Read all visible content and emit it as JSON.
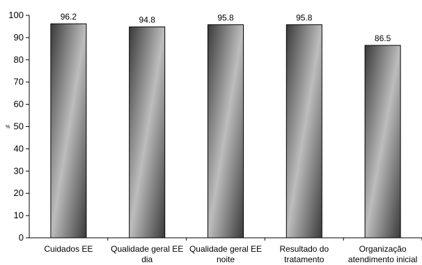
{
  "chart_data": {
    "type": "bar",
    "title": "",
    "xlabel": "",
    "ylabel": "%",
    "ylim": [
      0,
      100
    ],
    "yticks": [
      0,
      10,
      20,
      30,
      40,
      50,
      60,
      70,
      80,
      90,
      100
    ],
    "grid": false,
    "legend": "none",
    "categories": [
      [
        "Cuidados EE"
      ],
      [
        "Qualidade geral EE",
        "dia"
      ],
      [
        "Qualidade geral EE",
        "noite"
      ],
      [
        "Resultado do",
        "tratamento"
      ],
      [
        "Organização",
        "atendimento inicial"
      ]
    ],
    "values": [
      96.2,
      94.8,
      95.8,
      95.8,
      86.5
    ],
    "data_labels": [
      "96.2",
      "94.8",
      "95.8",
      "95.8",
      "86.5"
    ],
    "colors": {
      "bar_dark": "#3a3a3a",
      "bar_light": "#c8c8c8",
      "bar_stroke": "#000000",
      "axis": "#000000"
    }
  }
}
